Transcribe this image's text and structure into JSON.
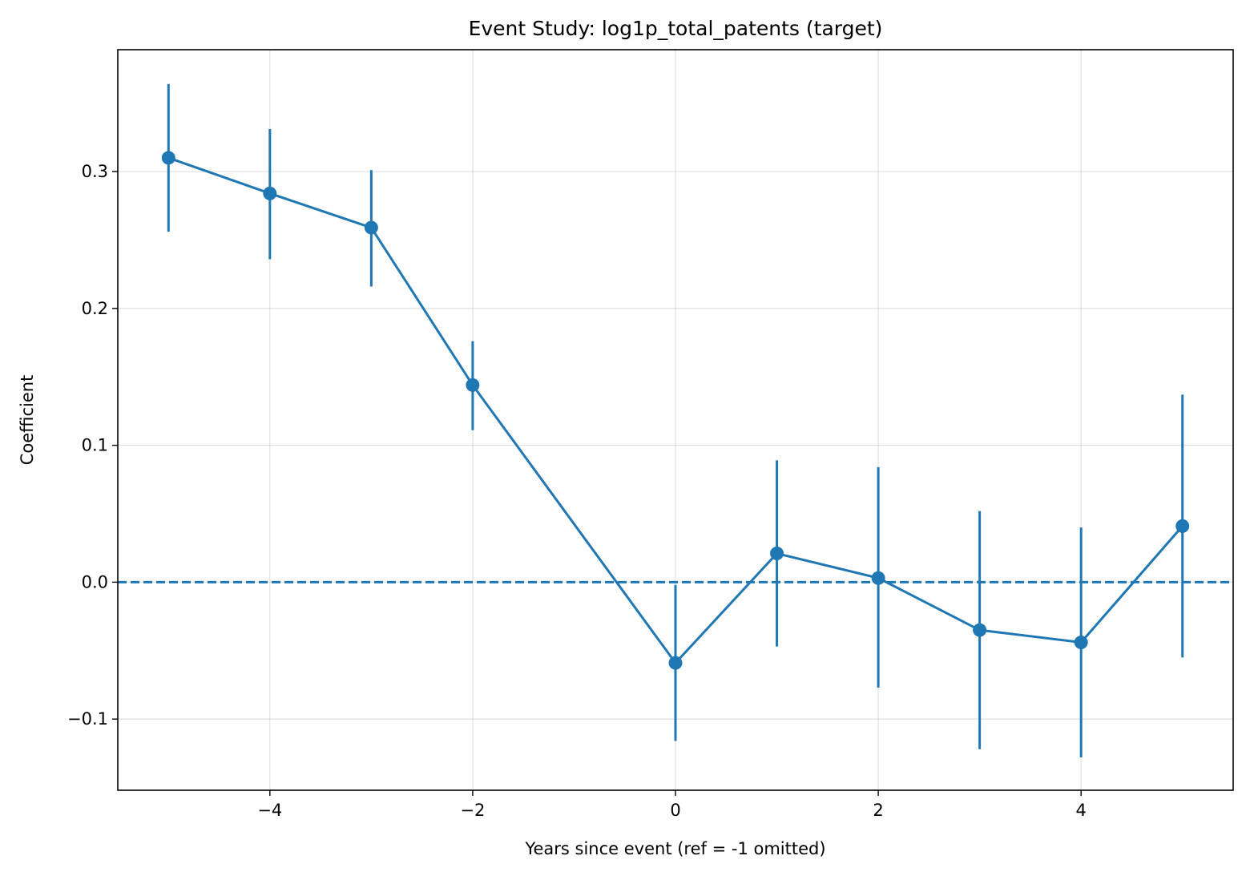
{
  "chart_data": {
    "type": "line",
    "title": "Event Study: log1p_total_patents (target)",
    "xlabel": "Years since event (ref = -1 omitted)",
    "ylabel": "Coefficient",
    "xlim": [
      -5.5,
      5.5
    ],
    "ylim": [
      -0.152,
      0.389
    ],
    "xticks": [
      -4,
      -2,
      0,
      2,
      4
    ],
    "xtick_labels": [
      "−4",
      "−2",
      "0",
      "2",
      "4"
    ],
    "yticks": [
      -0.1,
      0.0,
      0.1,
      0.2,
      0.3
    ],
    "ytick_labels": [
      "−0.1",
      "0.0",
      "0.1",
      "0.2",
      "0.3"
    ],
    "grid": true,
    "reference_line": {
      "y": 0,
      "style": "dashed"
    },
    "series": [
      {
        "color": "#1f77b4",
        "x": [
          -5,
          -4,
          -3,
          -2,
          0,
          1,
          2,
          3,
          4,
          5
        ],
        "y": [
          0.31,
          0.284,
          0.259,
          0.144,
          -0.059,
          0.021,
          0.003,
          -0.035,
          -0.044,
          0.041
        ],
        "ci_low": [
          0.256,
          0.236,
          0.216,
          0.111,
          -0.116,
          -0.047,
          -0.077,
          -0.122,
          -0.128,
          -0.055
        ],
        "ci_high": [
          0.364,
          0.331,
          0.301,
          0.176,
          -0.002,
          0.089,
          0.084,
          0.052,
          0.04,
          0.137
        ]
      }
    ]
  }
}
